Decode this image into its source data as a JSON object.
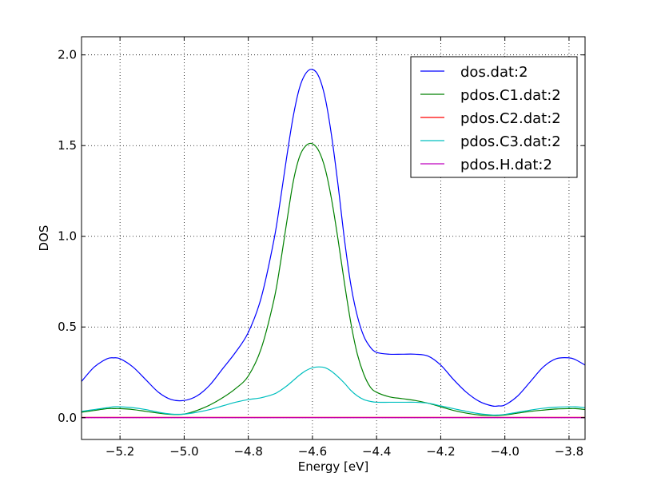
{
  "chart_data": {
    "type": "line",
    "title": "",
    "xlabel": "Energy [eV]",
    "ylabel": "DOS",
    "xlim": [
      -5.32,
      -3.75
    ],
    "ylim": [
      -0.12,
      2.1
    ],
    "grid": true,
    "grid_style": "dotted",
    "legend_position": "top-right",
    "x_ticks": [
      -5.2,
      -5.0,
      -4.8,
      -4.6,
      -4.4,
      -4.2,
      -4.0,
      -3.8
    ],
    "x_tick_labels": [
      "−5.2",
      "−5.0",
      "−4.8",
      "−4.6",
      "−4.4",
      "−4.2",
      "−4.0",
      "−3.8"
    ],
    "y_ticks": [
      0.0,
      0.5,
      1.0,
      1.5,
      2.0
    ],
    "y_tick_labels": [
      "0.0",
      "0.5",
      "1.0",
      "1.5",
      "2.0"
    ],
    "x": [
      -5.32,
      -5.28,
      -5.24,
      -5.22,
      -5.2,
      -5.16,
      -5.12,
      -5.08,
      -5.04,
      -5.0,
      -4.96,
      -4.92,
      -4.88,
      -4.84,
      -4.8,
      -4.76,
      -4.72,
      -4.7,
      -4.68,
      -4.66,
      -4.64,
      -4.62,
      -4.6,
      -4.58,
      -4.56,
      -4.54,
      -4.52,
      -4.5,
      -4.48,
      -4.46,
      -4.44,
      -4.42,
      -4.4,
      -4.36,
      -4.32,
      -4.28,
      -4.24,
      -4.2,
      -4.16,
      -4.12,
      -4.08,
      -4.04,
      -4.02,
      -4.0,
      -3.96,
      -3.92,
      -3.88,
      -3.84,
      -3.8,
      -3.78,
      -3.75
    ],
    "series": [
      {
        "name": "dos.dat:2",
        "color": "#0000ff",
        "values": [
          0.2,
          0.28,
          0.325,
          0.33,
          0.325,
          0.28,
          0.21,
          0.14,
          0.1,
          0.095,
          0.12,
          0.18,
          0.27,
          0.36,
          0.47,
          0.66,
          0.98,
          1.2,
          1.44,
          1.66,
          1.82,
          1.9,
          1.92,
          1.88,
          1.76,
          1.55,
          1.28,
          0.98,
          0.73,
          0.56,
          0.45,
          0.39,
          0.36,
          0.35,
          0.35,
          0.35,
          0.34,
          0.29,
          0.21,
          0.14,
          0.09,
          0.065,
          0.065,
          0.07,
          0.12,
          0.2,
          0.28,
          0.325,
          0.33,
          0.32,
          0.29
        ]
      },
      {
        "name": "pdos.C1.dat:2",
        "color": "#008000",
        "values": [
          0.03,
          0.04,
          0.05,
          0.05,
          0.05,
          0.045,
          0.035,
          0.025,
          0.018,
          0.02,
          0.04,
          0.07,
          0.11,
          0.16,
          0.23,
          0.38,
          0.65,
          0.85,
          1.08,
          1.3,
          1.44,
          1.5,
          1.51,
          1.47,
          1.37,
          1.2,
          0.98,
          0.74,
          0.52,
          0.35,
          0.24,
          0.17,
          0.14,
          0.115,
          0.105,
          0.095,
          0.08,
          0.06,
          0.04,
          0.025,
          0.015,
          0.012,
          0.012,
          0.015,
          0.025,
          0.035,
          0.042,
          0.048,
          0.05,
          0.05,
          0.045
        ]
      },
      {
        "name": "pdos.C2.dat:2",
        "color": "#ff0000",
        "values": [
          0.002,
          0.002,
          0.002,
          0.002,
          0.002,
          0.002,
          0.002,
          0.002,
          0.002,
          0.002,
          0.002,
          0.002,
          0.002,
          0.002,
          0.002,
          0.002,
          0.002,
          0.002,
          0.002,
          0.002,
          0.002,
          0.002,
          0.002,
          0.002,
          0.002,
          0.002,
          0.002,
          0.002,
          0.002,
          0.002,
          0.002,
          0.002,
          0.002,
          0.002,
          0.002,
          0.002,
          0.002,
          0.002,
          0.002,
          0.002,
          0.002,
          0.002,
          0.002,
          0.002,
          0.002,
          0.002,
          0.002,
          0.002,
          0.002,
          0.002,
          0.002
        ]
      },
      {
        "name": "pdos.C3.dat:2",
        "color": "#00bfbf",
        "values": [
          0.035,
          0.045,
          0.055,
          0.06,
          0.06,
          0.055,
          0.045,
          0.03,
          0.02,
          0.02,
          0.03,
          0.045,
          0.065,
          0.085,
          0.1,
          0.11,
          0.13,
          0.15,
          0.175,
          0.205,
          0.235,
          0.26,
          0.275,
          0.28,
          0.275,
          0.255,
          0.225,
          0.19,
          0.15,
          0.12,
          0.1,
          0.09,
          0.085,
          0.085,
          0.085,
          0.085,
          0.08,
          0.065,
          0.05,
          0.035,
          0.022,
          0.015,
          0.015,
          0.018,
          0.03,
          0.042,
          0.052,
          0.058,
          0.06,
          0.06,
          0.055
        ]
      },
      {
        "name": "pdos.H.dat:2",
        "color": "#bf00bf",
        "values": [
          0.0,
          0.0,
          0.0,
          0.0,
          0.0,
          0.0,
          0.0,
          0.0,
          0.0,
          0.0,
          0.0,
          0.0,
          0.0,
          0.0,
          0.0,
          0.0,
          0.0,
          0.0,
          0.0,
          0.0,
          0.0,
          0.0,
          0.0,
          0.0,
          0.0,
          0.0,
          0.0,
          0.0,
          0.0,
          0.0,
          0.0,
          0.0,
          0.0,
          0.0,
          0.0,
          0.0,
          0.0,
          0.0,
          0.0,
          0.0,
          0.0,
          0.0,
          0.0,
          0.0,
          0.0,
          0.0,
          0.0,
          0.0,
          0.0,
          0.0,
          0.0
        ]
      }
    ]
  }
}
